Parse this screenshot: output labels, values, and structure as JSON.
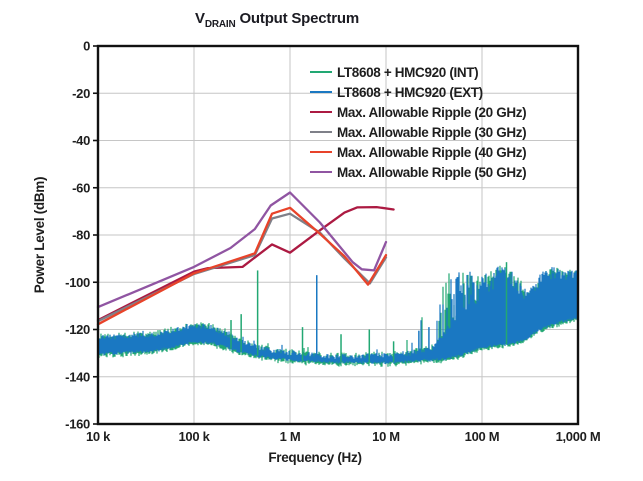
{
  "title_parts": {
    "prefix": "V",
    "sub": "DRAIN",
    "rest": "Output Spectrum"
  },
  "chart_data": {
    "type": "line",
    "title": "V_DRAIN Output Spectrum",
    "xlabel": "Frequency (Hz)",
    "ylabel": "Power Level (dBm)",
    "x_scale": "log",
    "x_range_hz": [
      10000,
      1000000000
    ],
    "y_range_dbm": [
      -160,
      0
    ],
    "grid": true,
    "legend_position": "top-right",
    "x_ticks": [
      {
        "hz": 10000,
        "label": "10 k"
      },
      {
        "hz": 100000,
        "label": "100 k"
      },
      {
        "hz": 1000000,
        "label": "1 M"
      },
      {
        "hz": 10000000,
        "label": "10 M"
      },
      {
        "hz": 100000000,
        "label": "100 M"
      },
      {
        "hz": 1000000000,
        "label": "1,000 M"
      }
    ],
    "y_ticks": [
      {
        "dbm": 0,
        "label": "0"
      },
      {
        "dbm": -20,
        "label": "-20"
      },
      {
        "dbm": -40,
        "label": "-40"
      },
      {
        "dbm": -60,
        "label": "-60"
      },
      {
        "dbm": -80,
        "label": "-80"
      },
      {
        "dbm": -100,
        "label": "-100"
      },
      {
        "dbm": -120,
        "label": "-120"
      },
      {
        "dbm": -140,
        "label": "-140"
      },
      {
        "dbm": -160,
        "label": "-160"
      }
    ],
    "noise_series": [
      {
        "name": "LT8608 + HMC920 (INT)",
        "color": "#22A873",
        "spikes_hz_dbm": [
          [
            243000,
            -116
          ],
          [
            310000,
            -113.5
          ],
          [
            460000,
            -95
          ],
          [
            1350000,
            -119
          ],
          [
            3400000,
            -122
          ],
          [
            6700000,
            -120
          ],
          [
            12000000,
            -125
          ],
          [
            180000000,
            -91.5
          ]
        ]
      },
      {
        "name": "LT8608 + HMC920 (EXT)",
        "color": "#1A78C2",
        "spikes_hz_dbm": [
          [
            1900000,
            -97
          ],
          [
            22000000,
            -120.5
          ],
          [
            28000000,
            -119
          ]
        ]
      }
    ],
    "noise_envelope_hz_bottom_top_peak_prob": [
      [
        10000,
        -130.5,
        -123.5,
        -121,
        0.03
      ],
      [
        40000,
        -129,
        -122,
        -120,
        0.03
      ],
      [
        100000,
        -125.5,
        -118.5,
        -117,
        0.03
      ],
      [
        150000,
        -125.5,
        -119,
        -117,
        0.03
      ],
      [
        220000,
        -127.5,
        -122,
        -119,
        0.03
      ],
      [
        300000,
        -129.5,
        -125,
        -122,
        0.03
      ],
      [
        500000,
        -131.5,
        -128,
        -125,
        0.03
      ],
      [
        1000000,
        -133,
        -130,
        -127,
        0.03
      ],
      [
        3000000,
        -134,
        -131.5,
        -128,
        0.02
      ],
      [
        10000000,
        -134,
        -131,
        -127,
        0.03
      ],
      [
        18000000,
        -133.5,
        -130,
        -122,
        0.06
      ],
      [
        30000000,
        -133,
        -128,
        -107,
        0.25
      ],
      [
        40000000,
        -132.5,
        -122,
        -97,
        0.5
      ],
      [
        60000000,
        -131,
        -112,
        -94,
        0.7
      ],
      [
        100000000,
        -127.5,
        -107,
        -97,
        0.75
      ],
      [
        160000000,
        -126.5,
        -101,
        -92,
        0.75
      ],
      [
        220000000,
        -126,
        -102,
        -95,
        0.7
      ],
      [
        300000000,
        -123.5,
        -108,
        -104,
        0.6
      ],
      [
        400000000,
        -120,
        -101,
        -96,
        0.7
      ],
      [
        550000000,
        -118,
        -97,
        -93,
        0.75
      ],
      [
        700000000,
        -116.5,
        -98,
        -95,
        0.7
      ],
      [
        1000000000,
        -115,
        -97.5,
        -94,
        0.7
      ]
    ],
    "ripple_series": [
      {
        "name": "Max. Allowable Ripple (20 GHz)",
        "color": "#AC1A42",
        "points_hz_dbm": [
          [
            10000,
            -116
          ],
          [
            100000,
            -95.5
          ],
          [
            140000,
            -94
          ],
          [
            320000,
            -93.5
          ],
          [
            650000,
            -84
          ],
          [
            1000000,
            -87.5
          ],
          [
            2050000,
            -78
          ],
          [
            3700000,
            -70.5
          ],
          [
            5000000,
            -68.3
          ],
          [
            8000000,
            -68.2
          ],
          [
            12000000,
            -69.2
          ]
        ]
      },
      {
        "name": "Max. Allowable Ripple (30 GHz)",
        "color": "#7F8089",
        "points_hz_dbm": [
          [
            10000,
            -116.5
          ],
          [
            100000,
            -96.5
          ],
          [
            430000,
            -88.5
          ],
          [
            650000,
            -73
          ],
          [
            1000000,
            -71
          ],
          [
            2050000,
            -79
          ],
          [
            3700000,
            -90
          ],
          [
            6800000,
            -100.5
          ],
          [
            10000000,
            -89.5
          ]
        ]
      },
      {
        "name": "Max. Allowable Ripple (40 GHz)",
        "color": "#E8432A",
        "points_hz_dbm": [
          [
            10000,
            -117.8
          ],
          [
            100000,
            -96.2
          ],
          [
            430000,
            -87.8
          ],
          [
            650000,
            -71
          ],
          [
            1000000,
            -68.5
          ],
          [
            2050000,
            -79.5
          ],
          [
            3700000,
            -89
          ],
          [
            6500000,
            -101
          ],
          [
            10000000,
            -88.5
          ]
        ]
      },
      {
        "name": "Max. Allowable Ripple (50 GHz)",
        "color": "#9055A2",
        "points_hz_dbm": [
          [
            10000,
            -110.5
          ],
          [
            100000,
            -93.5
          ],
          [
            240000,
            -85.5
          ],
          [
            430000,
            -77.5
          ],
          [
            630000,
            -67.5
          ],
          [
            1000000,
            -62
          ],
          [
            2050000,
            -74.7
          ],
          [
            4500000,
            -91.5
          ],
          [
            5600000,
            -94.5
          ],
          [
            7500000,
            -95
          ],
          [
            10000000,
            -83
          ]
        ]
      }
    ]
  }
}
